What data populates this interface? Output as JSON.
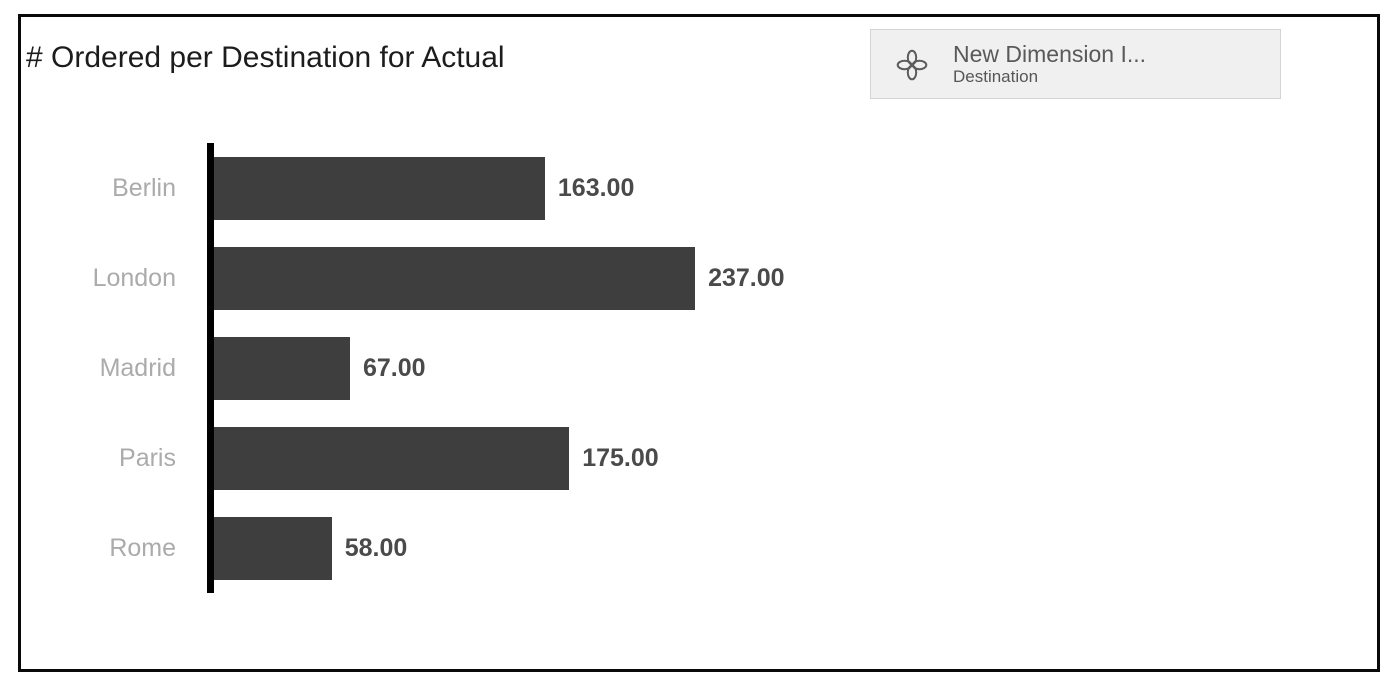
{
  "chart_data": {
    "type": "bar",
    "orientation": "horizontal",
    "title": "# Ordered per Destination for Actual",
    "categories": [
      "Berlin",
      "London",
      "Madrid",
      "Paris",
      "Rome"
    ],
    "values": [
      163,
      237,
      67,
      175,
      58
    ],
    "value_labels": [
      "163.00",
      "237.00",
      "67.00",
      "175.00",
      "58.00"
    ],
    "xlabel": "",
    "ylabel": "",
    "xlim": [
      0,
      250
    ],
    "grid": false,
    "legend": false,
    "data_labels": true,
    "bar_color": "#3e3e3e",
    "axis_color": "#000000",
    "category_label_color": "#ababab",
    "value_label_color": "#4a4a4a"
  },
  "input_control": {
    "title": "New Dimension I...",
    "subtitle": "Destination",
    "icon": "clover-dimension-icon",
    "background": "#f0f0f0",
    "border_color": "#d4d4d4"
  }
}
